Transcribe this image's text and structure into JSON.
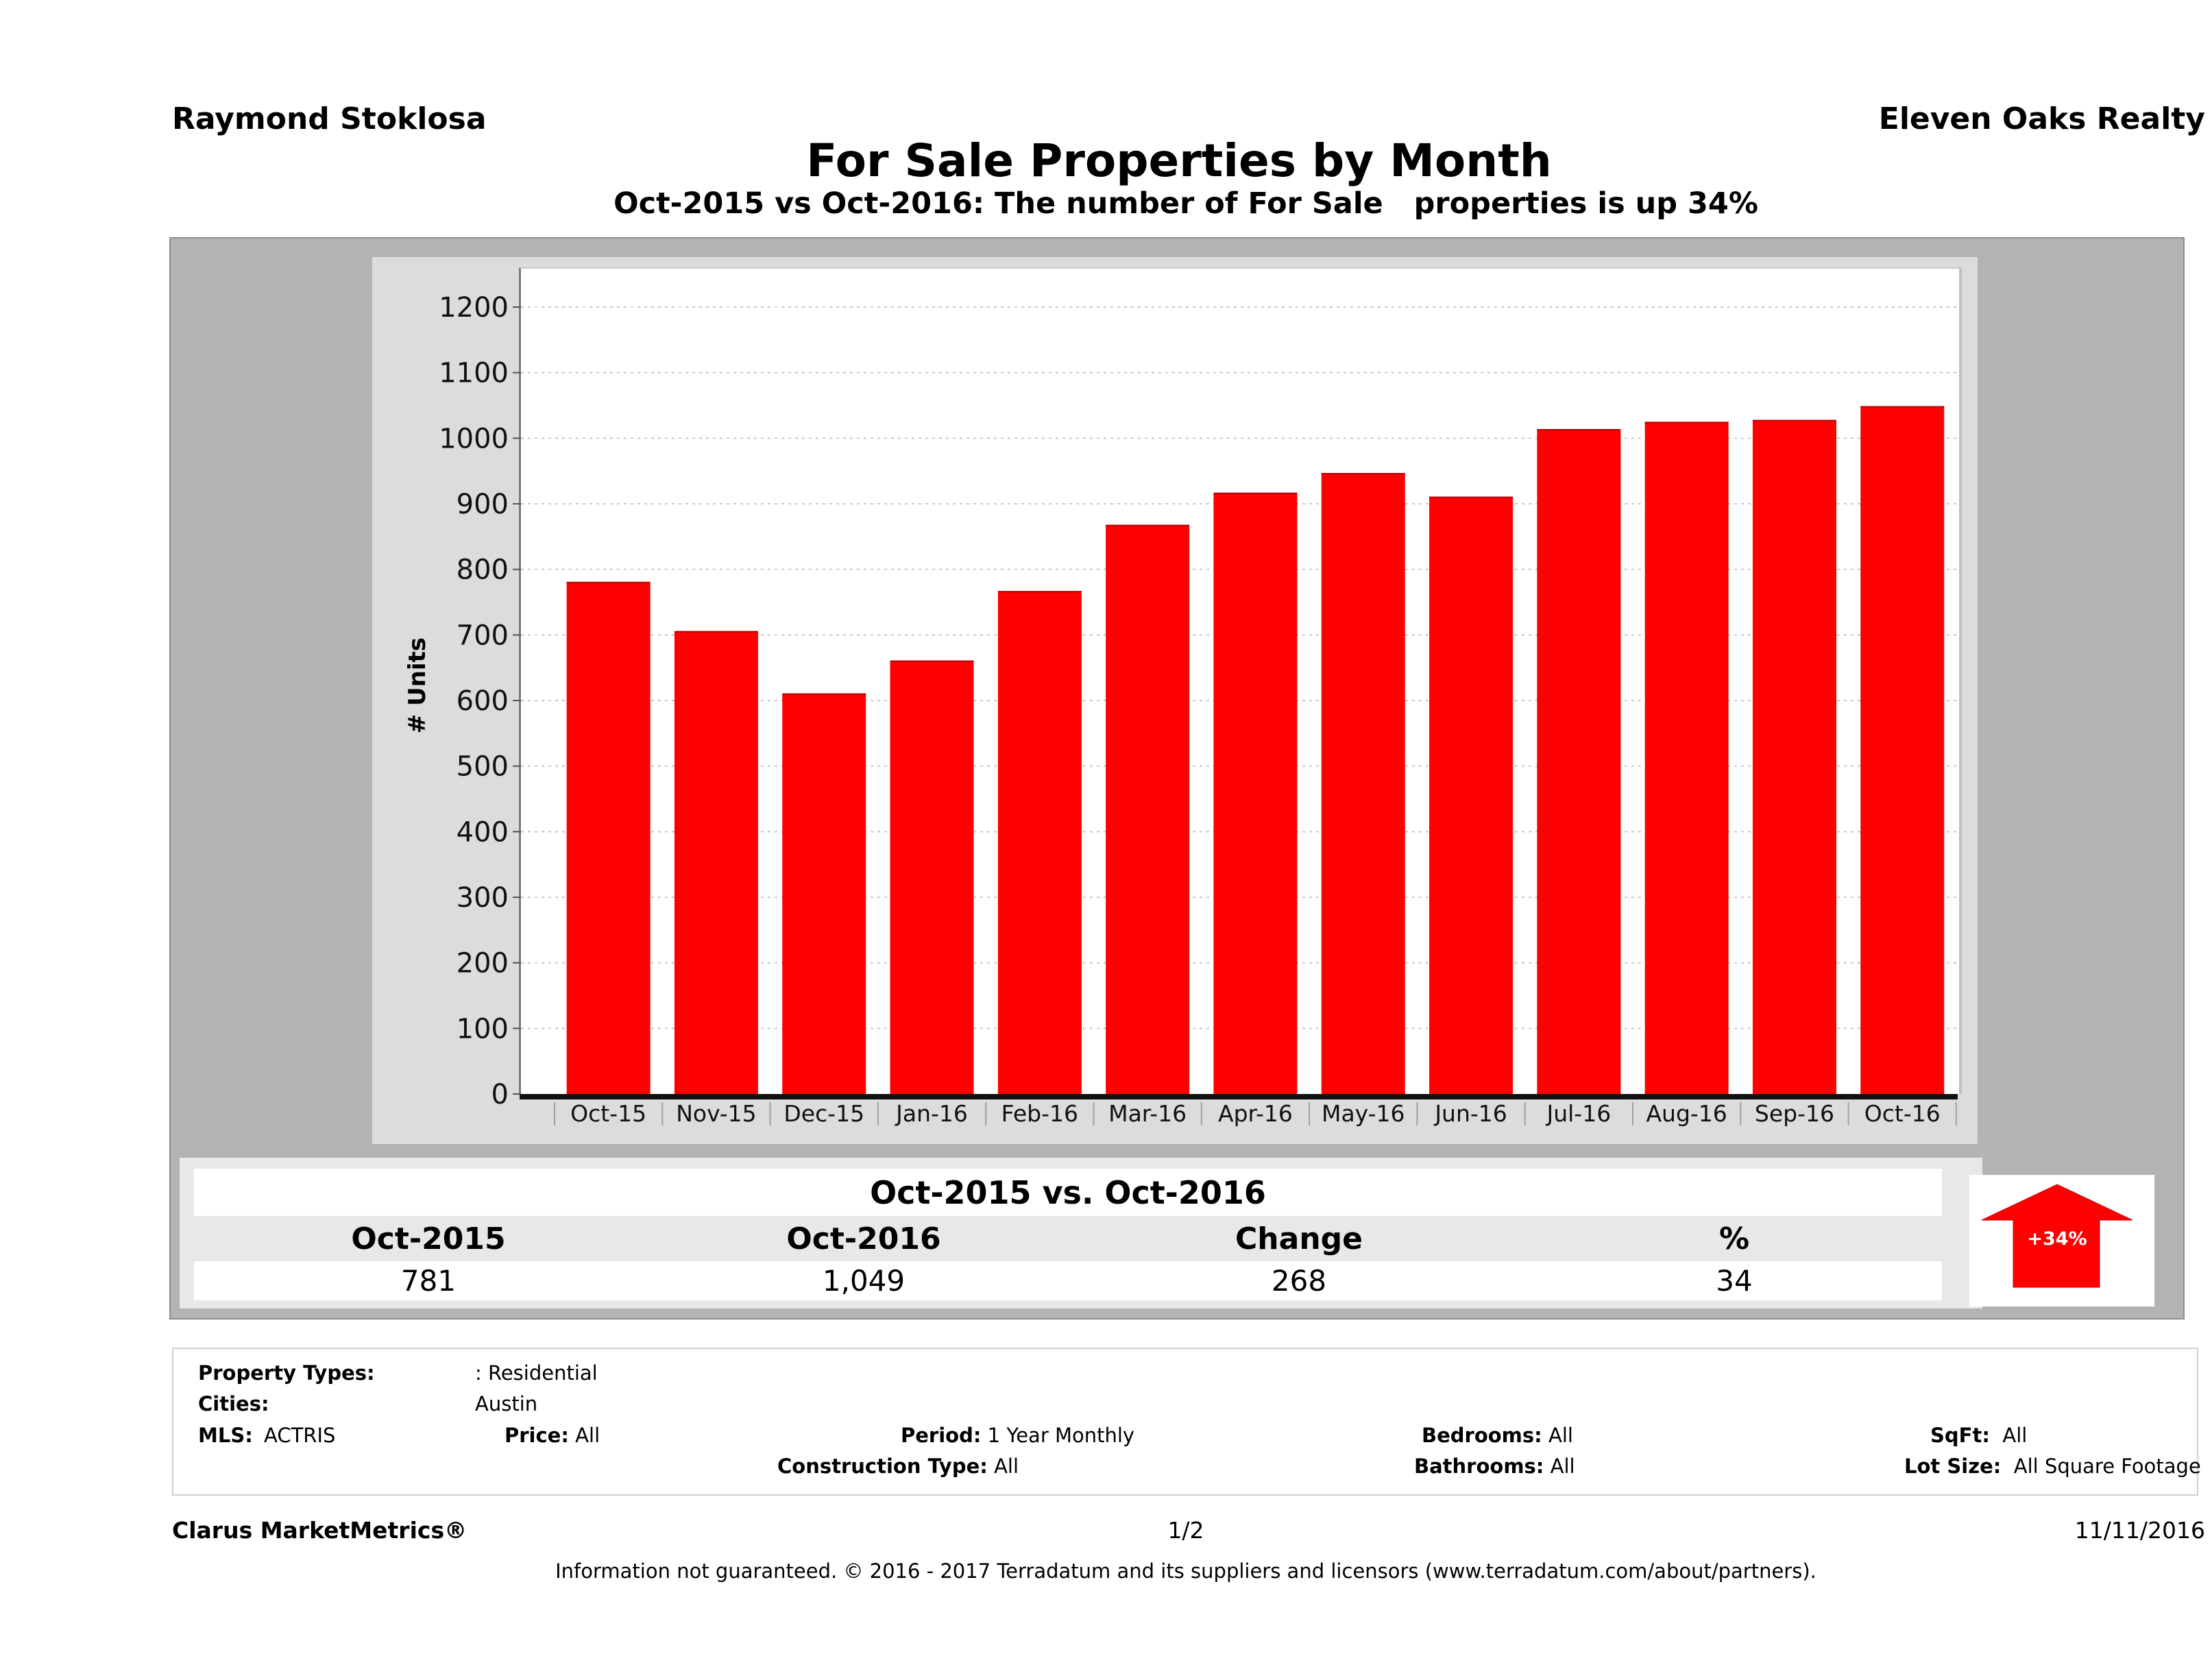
{
  "header": {
    "agent_name": "Raymond Stoklosa",
    "company_name": "Eleven Oaks Realty",
    "title": "For Sale Properties by Month",
    "subtitle": "Oct-2015 vs Oct-2016: The number of For Sale   properties is up 34%"
  },
  "colors": {
    "bar": "#ff0000",
    "outer_panel": "#b3b3b3",
    "chart_panel": "#dcdcdc",
    "arrow": "#ff0000"
  },
  "chart_data": {
    "type": "bar",
    "title": "For Sale Properties by Month",
    "subtitle": "Oct-2015 vs Oct-2016: The number of For Sale   properties is up 34%",
    "xlabel": "",
    "ylabel": "# Units",
    "categories": [
      "Oct-15",
      "Nov-15",
      "Dec-15",
      "Jan-16",
      "Feb-16",
      "Mar-16",
      "Apr-16",
      "May-16",
      "Jun-16",
      "Jul-16",
      "Aug-16",
      "Sep-16",
      "Oct-16"
    ],
    "series": [
      {
        "name": "For Sale Properties",
        "values": [
          781,
          706,
          611,
          661,
          767,
          868,
          917,
          947,
          911,
          1014,
          1025,
          1028,
          1049
        ]
      }
    ],
    "ylim": [
      0,
      1200
    ],
    "yticks": [
      0,
      100,
      200,
      300,
      400,
      500,
      600,
      700,
      800,
      900,
      1000,
      1100,
      1200
    ],
    "grid": true,
    "legend": "none"
  },
  "comparison": {
    "title": "Oct-2015 vs. Oct-2016",
    "headers": [
      "Oct-2015",
      "Oct-2016",
      "Change",
      "%"
    ],
    "values": [
      "781",
      "1,049",
      "268",
      "34"
    ],
    "badge": "+34%",
    "direction": "up"
  },
  "criteria": {
    "property_types_label": "Property Types:",
    "property_types_value": ": Residential",
    "cities_label": "Cities:",
    "cities_value": "Austin",
    "mls_label": "MLS:",
    "mls_value": "ACTRIS",
    "price_label": "Price:",
    "price_value": "All",
    "period_label": "Period:",
    "period_value": "1 Year Monthly",
    "construction_label": "Construction Type:",
    "construction_value": "All",
    "bedrooms_label": "Bedrooms:",
    "bedrooms_value": "All",
    "bathrooms_label": "Bathrooms:",
    "bathrooms_value": "All",
    "sqft_label": "SqFt:",
    "sqft_value": "All",
    "lot_size_label": "Lot Size:",
    "lot_size_value": "All Square Footage"
  },
  "footer": {
    "product": "Clarus MarketMetrics®",
    "page": "1/2",
    "date": "11/11/2016",
    "disclaimer": "Information not guaranteed. © 2016 - 2017 Terradatum and its suppliers and licensors (www.terradatum.com/about/partners)."
  }
}
